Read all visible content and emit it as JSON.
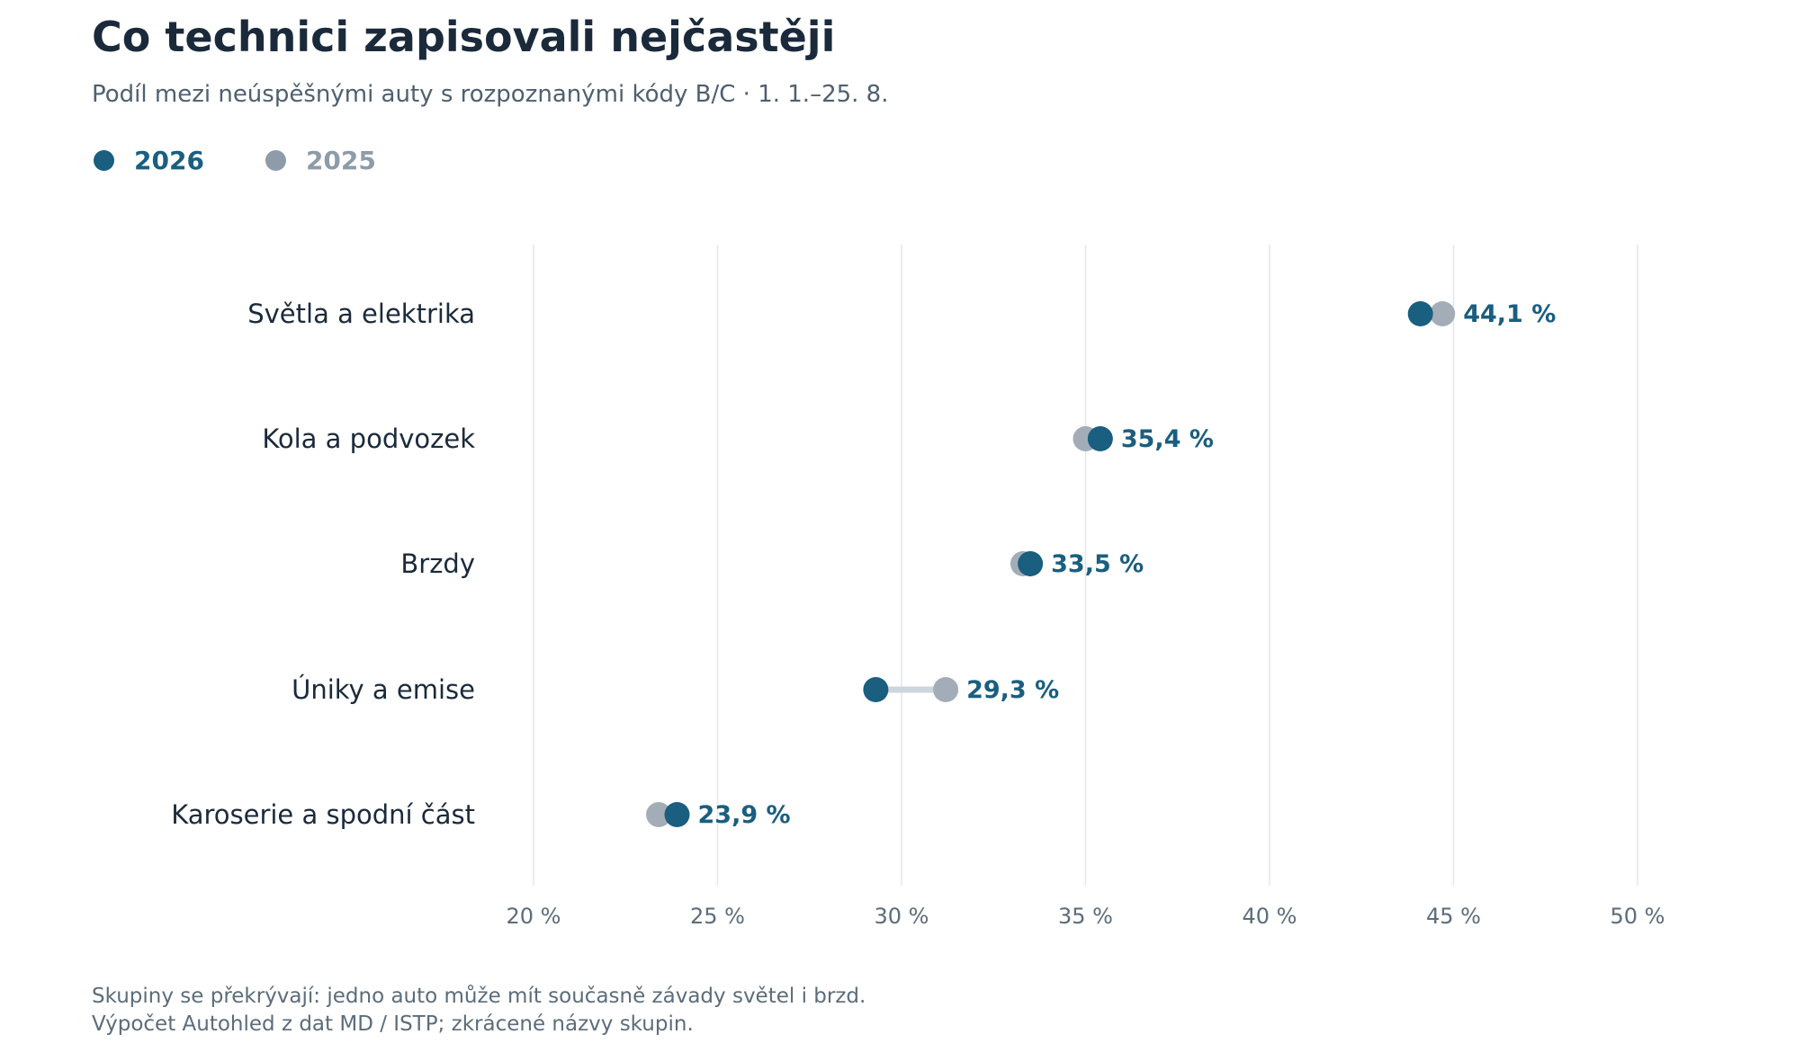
{
  "title": "Co technici zapisovali nejčastěji",
  "subtitle": "Podíl mezi neúspěšnými auty s rozpoznanými kódy B/C · 1. 1.–25. 8.",
  "legend": [
    {
      "label": "2026",
      "color": "#1a5e80"
    },
    {
      "label": "2025",
      "color": "#8e9ba8"
    }
  ],
  "footnotes": [
    "Skupiny se překrývají: jedno auto může mít současně závady světel i brzd.",
    "Výpočet Autohled z dat MD / ISTP; zkrácené názvy skupin."
  ],
  "colors": {
    "current": "#1a5e80",
    "previous": "#a3adb8",
    "connector": "#cfd5dc",
    "grid": "#e4e7ea",
    "category_text": "#1b2a3b",
    "tick_text": "#5c6c7a"
  },
  "chart_data": {
    "type": "dot-plot",
    "categories": [
      "Světla a elektrika",
      "Kola a podvozek",
      "Brzdy",
      "Úniky a emise",
      "Karoserie a spodní část"
    ],
    "series": [
      {
        "name": "2026",
        "values": [
          44.1,
          35.4,
          33.5,
          29.3,
          23.9
        ]
      },
      {
        "name": "2025",
        "values": [
          44.7,
          35.0,
          33.3,
          31.2,
          23.4
        ]
      }
    ],
    "value_labels": [
      "44,1 %",
      "35,4 %",
      "33,5 %",
      "29,3 %",
      "23,9 %"
    ],
    "x_ticks": [
      20,
      25,
      30,
      35,
      40,
      45,
      50
    ],
    "x_tick_labels": [
      "20 %",
      "25 %",
      "30 %",
      "35 %",
      "40 %",
      "45 %",
      "50 %"
    ],
    "xlim": [
      20,
      50
    ],
    "grid": true
  }
}
